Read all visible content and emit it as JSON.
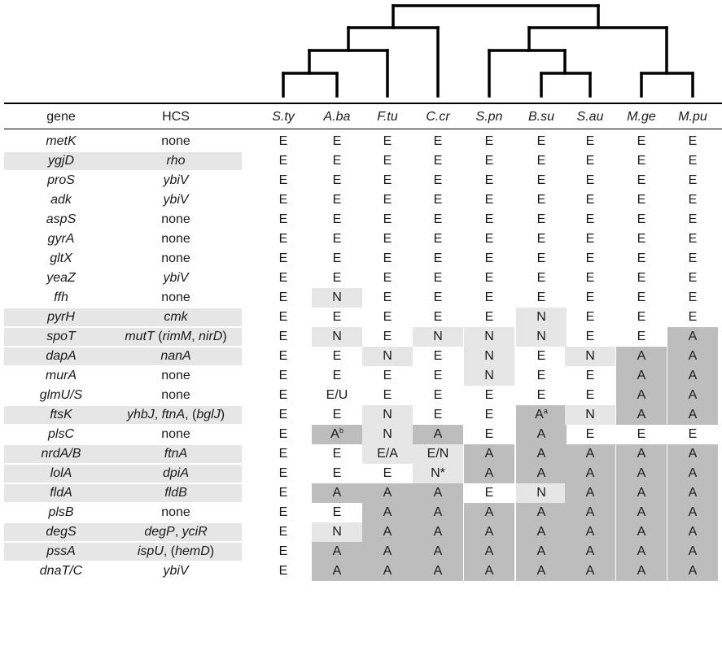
{
  "header": {
    "gene": "gene",
    "hcs": "HCS",
    "species": [
      "S.ty",
      "A.ba",
      "F.tu",
      "C.cr",
      "S.pn",
      "B.su",
      "S.au",
      "M.ge",
      "M.pu"
    ]
  },
  "shading": {
    "light": "#e6e6e6",
    "dark": "#bdbdbd"
  },
  "rows": [
    {
      "gene": "metK",
      "hcs": [
        {
          "t": "none",
          "i": false
        }
      ],
      "hl": false,
      "cells": [
        {
          "v": "E"
        },
        {
          "v": "E"
        },
        {
          "v": "E"
        },
        {
          "v": "E"
        },
        {
          "v": "E"
        },
        {
          "v": "E"
        },
        {
          "v": "E"
        },
        {
          "v": "E"
        },
        {
          "v": "E"
        }
      ]
    },
    {
      "gene": "ygjD",
      "hcs": [
        {
          "t": "rho",
          "i": true
        }
      ],
      "hl": true,
      "cells": [
        {
          "v": "E"
        },
        {
          "v": "E"
        },
        {
          "v": "E"
        },
        {
          "v": "E"
        },
        {
          "v": "E"
        },
        {
          "v": "E"
        },
        {
          "v": "E"
        },
        {
          "v": "E"
        },
        {
          "v": "E"
        }
      ]
    },
    {
      "gene": "proS",
      "hcs": [
        {
          "t": "ybiV",
          "i": true
        }
      ],
      "hl": false,
      "cells": [
        {
          "v": "E"
        },
        {
          "v": "E"
        },
        {
          "v": "E"
        },
        {
          "v": "E"
        },
        {
          "v": "E"
        },
        {
          "v": "E"
        },
        {
          "v": "E"
        },
        {
          "v": "E"
        },
        {
          "v": "E"
        }
      ]
    },
    {
      "gene": "adk",
      "hcs": [
        {
          "t": "ybiV",
          "i": true
        }
      ],
      "hl": false,
      "cells": [
        {
          "v": "E"
        },
        {
          "v": "E"
        },
        {
          "v": "E"
        },
        {
          "v": "E"
        },
        {
          "v": "E"
        },
        {
          "v": "E"
        },
        {
          "v": "E"
        },
        {
          "v": "E"
        },
        {
          "v": "E"
        }
      ]
    },
    {
      "gene": "aspS",
      "hcs": [
        {
          "t": "none",
          "i": false
        }
      ],
      "hl": false,
      "cells": [
        {
          "v": "E"
        },
        {
          "v": "E"
        },
        {
          "v": "E"
        },
        {
          "v": "E"
        },
        {
          "v": "E"
        },
        {
          "v": "E"
        },
        {
          "v": "E"
        },
        {
          "v": "E"
        },
        {
          "v": "E"
        }
      ]
    },
    {
      "gene": "gyrA",
      "hcs": [
        {
          "t": "none",
          "i": false
        }
      ],
      "hl": false,
      "cells": [
        {
          "v": "E"
        },
        {
          "v": "E"
        },
        {
          "v": "E"
        },
        {
          "v": "E"
        },
        {
          "v": "E"
        },
        {
          "v": "E"
        },
        {
          "v": "E"
        },
        {
          "v": "E"
        },
        {
          "v": "E"
        }
      ]
    },
    {
      "gene": "gltX",
      "hcs": [
        {
          "t": "none",
          "i": false
        }
      ],
      "hl": false,
      "cells": [
        {
          "v": "E"
        },
        {
          "v": "E"
        },
        {
          "v": "E"
        },
        {
          "v": "E"
        },
        {
          "v": "E"
        },
        {
          "v": "E"
        },
        {
          "v": "E"
        },
        {
          "v": "E"
        },
        {
          "v": "E"
        }
      ]
    },
    {
      "gene": "yeaZ",
      "hcs": [
        {
          "t": "ybiV",
          "i": true
        }
      ],
      "hl": false,
      "cells": [
        {
          "v": "E"
        },
        {
          "v": "E"
        },
        {
          "v": "E"
        },
        {
          "v": "E"
        },
        {
          "v": "E"
        },
        {
          "v": "E"
        },
        {
          "v": "E"
        },
        {
          "v": "E"
        },
        {
          "v": "E"
        }
      ]
    },
    {
      "gene": "ffh",
      "hcs": [
        {
          "t": "none",
          "i": false
        }
      ],
      "hl": false,
      "cells": [
        {
          "v": "E"
        },
        {
          "v": "N",
          "s": "light"
        },
        {
          "v": "E"
        },
        {
          "v": "E"
        },
        {
          "v": "E"
        },
        {
          "v": "E"
        },
        {
          "v": "E"
        },
        {
          "v": "E"
        },
        {
          "v": "E"
        }
      ]
    },
    {
      "gene": "pyrH",
      "hcs": [
        {
          "t": "cmk",
          "i": true
        }
      ],
      "hl": true,
      "cells": [
        {
          "v": "E"
        },
        {
          "v": "E"
        },
        {
          "v": "E"
        },
        {
          "v": "E"
        },
        {
          "v": "E"
        },
        {
          "v": "N",
          "s": "light"
        },
        {
          "v": "E"
        },
        {
          "v": "E"
        },
        {
          "v": "E"
        }
      ]
    },
    {
      "gene": "spoT",
      "hcs": [
        {
          "t": "mutT",
          "i": true
        },
        {
          "t": " (",
          "i": false
        },
        {
          "t": "rimM",
          "i": true
        },
        {
          "t": ", ",
          "i": false
        },
        {
          "t": "nirD",
          "i": true
        },
        {
          "t": ")",
          "i": false
        }
      ],
      "hl": true,
      "cells": [
        {
          "v": "E"
        },
        {
          "v": "N",
          "s": "light"
        },
        {
          "v": "E"
        },
        {
          "v": "N",
          "s": "light"
        },
        {
          "v": "N",
          "s": "light"
        },
        {
          "v": "N",
          "s": "light"
        },
        {
          "v": "E"
        },
        {
          "v": "E"
        },
        {
          "v": "A",
          "s": "dark"
        }
      ]
    },
    {
      "gene": "dapA",
      "hcs": [
        {
          "t": "nanA",
          "i": true
        }
      ],
      "hl": true,
      "cells": [
        {
          "v": "E"
        },
        {
          "v": "E"
        },
        {
          "v": "N",
          "s": "light"
        },
        {
          "v": "E"
        },
        {
          "v": "N",
          "s": "light"
        },
        {
          "v": "E"
        },
        {
          "v": "N",
          "s": "light"
        },
        {
          "v": "A",
          "s": "dark"
        },
        {
          "v": "A",
          "s": "dark"
        }
      ]
    },
    {
      "gene": "murA",
      "hcs": [
        {
          "t": "none",
          "i": false
        }
      ],
      "hl": false,
      "cells": [
        {
          "v": "E"
        },
        {
          "v": "E"
        },
        {
          "v": "E"
        },
        {
          "v": "E"
        },
        {
          "v": "N",
          "s": "light"
        },
        {
          "v": "E"
        },
        {
          "v": "E"
        },
        {
          "v": "A",
          "s": "dark"
        },
        {
          "v": "A",
          "s": "dark"
        }
      ]
    },
    {
      "gene": "glmU/S",
      "hcs": [
        {
          "t": "none",
          "i": false
        }
      ],
      "hl": false,
      "cells": [
        {
          "v": "E"
        },
        {
          "v": "E/U"
        },
        {
          "v": "E"
        },
        {
          "v": "E"
        },
        {
          "v": "E"
        },
        {
          "v": "E"
        },
        {
          "v": "E"
        },
        {
          "v": "A",
          "s": "dark"
        },
        {
          "v": "A",
          "s": "dark"
        }
      ]
    },
    {
      "gene": "ftsK",
      "hcs": [
        {
          "t": "yhbJ",
          "i": true
        },
        {
          "t": ", ",
          "i": false
        },
        {
          "t": "ftnA",
          "i": true
        },
        {
          "t": ", (",
          "i": false
        },
        {
          "t": "bglJ",
          "i": true
        },
        {
          "t": ")",
          "i": false
        }
      ],
      "hl": true,
      "cells": [
        {
          "v": "E"
        },
        {
          "v": "E"
        },
        {
          "v": "N",
          "s": "light"
        },
        {
          "v": "E"
        },
        {
          "v": "E"
        },
        {
          "v": "A",
          "s": "dark",
          "sup": "a"
        },
        {
          "v": "N",
          "s": "light"
        },
        {
          "v": "A",
          "s": "dark"
        },
        {
          "v": "A",
          "s": "dark"
        }
      ]
    },
    {
      "gene": "plsC",
      "hcs": [
        {
          "t": "none",
          "i": false
        }
      ],
      "hl": false,
      "cells": [
        {
          "v": "E"
        },
        {
          "v": "A",
          "s": "dark",
          "sup": "b"
        },
        {
          "v": "N",
          "s": "light"
        },
        {
          "v": "A",
          "s": "dark"
        },
        {
          "v": "E"
        },
        {
          "v": "A",
          "s": "dark"
        },
        {
          "v": "E"
        },
        {
          "v": "E"
        },
        {
          "v": "E"
        }
      ]
    },
    {
      "gene": "nrdA/B",
      "hcs": [
        {
          "t": "ftnA",
          "i": true
        }
      ],
      "hl": true,
      "cells": [
        {
          "v": "E"
        },
        {
          "v": "E"
        },
        {
          "v": "E/A",
          "s": "light"
        },
        {
          "v": "E/N",
          "s": "light"
        },
        {
          "v": "A",
          "s": "dark"
        },
        {
          "v": "A",
          "s": "dark"
        },
        {
          "v": "A",
          "s": "dark"
        },
        {
          "v": "A",
          "s": "dark"
        },
        {
          "v": "A",
          "s": "dark"
        }
      ]
    },
    {
      "gene": "lolA",
      "hcs": [
        {
          "t": "dpiA",
          "i": true
        }
      ],
      "hl": true,
      "cells": [
        {
          "v": "E"
        },
        {
          "v": "E"
        },
        {
          "v": "E"
        },
        {
          "v": "N*",
          "s": "light"
        },
        {
          "v": "A",
          "s": "dark"
        },
        {
          "v": "A",
          "s": "dark"
        },
        {
          "v": "A",
          "s": "dark"
        },
        {
          "v": "A",
          "s": "dark"
        },
        {
          "v": "A",
          "s": "dark"
        }
      ]
    },
    {
      "gene": "fldA",
      "hcs": [
        {
          "t": "fldB",
          "i": true
        }
      ],
      "hl": true,
      "cells": [
        {
          "v": "E"
        },
        {
          "v": "A",
          "s": "dark"
        },
        {
          "v": "A",
          "s": "dark"
        },
        {
          "v": "A",
          "s": "dark"
        },
        {
          "v": "E"
        },
        {
          "v": "N",
          "s": "light"
        },
        {
          "v": "A",
          "s": "dark"
        },
        {
          "v": "A",
          "s": "dark"
        },
        {
          "v": "A",
          "s": "dark"
        }
      ]
    },
    {
      "gene": "plsB",
      "hcs": [
        {
          "t": "none",
          "i": false
        }
      ],
      "hl": false,
      "cells": [
        {
          "v": "E"
        },
        {
          "v": "E"
        },
        {
          "v": "A",
          "s": "dark"
        },
        {
          "v": "A",
          "s": "dark"
        },
        {
          "v": "A",
          "s": "dark"
        },
        {
          "v": "A",
          "s": "dark"
        },
        {
          "v": "A",
          "s": "dark"
        },
        {
          "v": "A",
          "s": "dark"
        },
        {
          "v": "A",
          "s": "dark"
        }
      ]
    },
    {
      "gene": "degS",
      "hcs": [
        {
          "t": "degP",
          "i": true
        },
        {
          "t": ", ",
          "i": false
        },
        {
          "t": "yciR",
          "i": true
        }
      ],
      "hl": true,
      "cells": [
        {
          "v": "E"
        },
        {
          "v": "N",
          "s": "light"
        },
        {
          "v": "A",
          "s": "dark"
        },
        {
          "v": "A",
          "s": "dark"
        },
        {
          "v": "A",
          "s": "dark"
        },
        {
          "v": "A",
          "s": "dark"
        },
        {
          "v": "A",
          "s": "dark"
        },
        {
          "v": "A",
          "s": "dark"
        },
        {
          "v": "A",
          "s": "dark"
        }
      ]
    },
    {
      "gene": "pssA",
      "hcs": [
        {
          "t": "ispU",
          "i": true
        },
        {
          "t": ", (",
          "i": false
        },
        {
          "t": "hemD",
          "i": true
        },
        {
          "t": ")",
          "i": false
        }
      ],
      "hl": true,
      "cells": [
        {
          "v": "E"
        },
        {
          "v": "A",
          "s": "dark"
        },
        {
          "v": "A",
          "s": "dark"
        },
        {
          "v": "A",
          "s": "dark"
        },
        {
          "v": "A",
          "s": "dark"
        },
        {
          "v": "A",
          "s": "dark"
        },
        {
          "v": "A",
          "s": "dark"
        },
        {
          "v": "A",
          "s": "dark"
        },
        {
          "v": "A",
          "s": "dark"
        }
      ]
    },
    {
      "gene": "dnaT/C",
      "hcs": [
        {
          "t": "ybiV",
          "i": true
        }
      ],
      "hl": false,
      "cells": [
        {
          "v": "E"
        },
        {
          "v": "A",
          "s": "dark"
        },
        {
          "v": "A",
          "s": "dark"
        },
        {
          "v": "A",
          "s": "dark"
        },
        {
          "v": "A",
          "s": "dark"
        },
        {
          "v": "A",
          "s": "dark"
        },
        {
          "v": "A",
          "s": "dark"
        },
        {
          "v": "A",
          "s": "dark"
        },
        {
          "v": "A",
          "s": "dark"
        }
      ]
    }
  ]
}
